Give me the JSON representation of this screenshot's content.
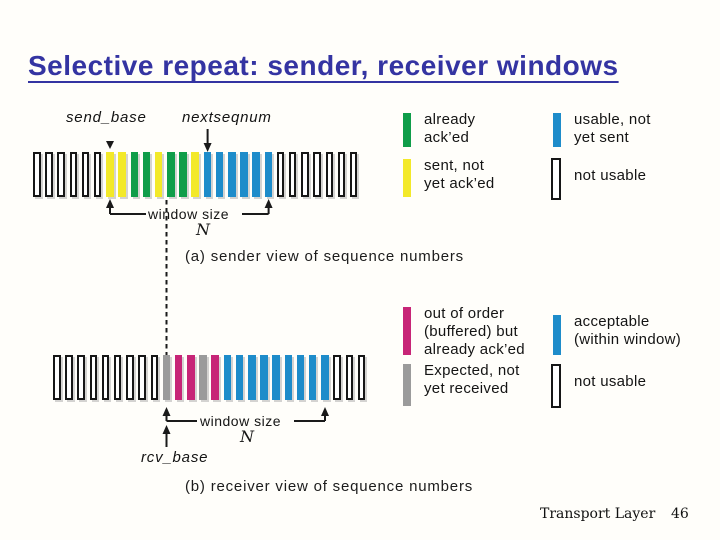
{
  "slide": {
    "title": "Selective repeat: sender, receiver windows",
    "footer": {
      "section": "Transport Layer",
      "page": "46"
    }
  },
  "colors": {
    "title": "#3434a2",
    "already_acked": "#0f9d49",
    "sent_unacked": "#f3e929",
    "usable": "#1e8cca",
    "acceptable": "#1e8cca",
    "out_of_order": "#c72577",
    "expected": "#9b9b9b",
    "bar_outline": "#161616"
  },
  "diagram": {
    "sender": {
      "send_base_label": "send_base",
      "nextseqnum_label": "nextseqnum",
      "window_size_label": "window size",
      "window_n_label": "N",
      "caption": "(a) sender view of sequence numbers",
      "bars": [
        "not_usable",
        "not_usable",
        "not_usable",
        "not_usable",
        "not_usable",
        "not_usable",
        "sent_unacked",
        "sent_unacked",
        "already_acked",
        "already_acked",
        "sent_unacked",
        "already_acked",
        "already_acked",
        "sent_unacked",
        "usable",
        "usable",
        "usable",
        "usable",
        "usable",
        "usable",
        "not_usable",
        "not_usable",
        "not_usable",
        "not_usable",
        "not_usable",
        "not_usable",
        "not_usable"
      ]
    },
    "receiver": {
      "rcv_base_label": "rcv_base",
      "window_size_label": "window size",
      "window_n_label": "N",
      "caption": "(b) receiver view of sequence numbers",
      "bars": [
        "not_usable",
        "not_usable",
        "not_usable",
        "not_usable",
        "not_usable",
        "not_usable",
        "not_usable",
        "not_usable",
        "not_usable",
        "expected",
        "out_of_order",
        "out_of_order",
        "expected",
        "out_of_order",
        "acceptable",
        "acceptable",
        "acceptable",
        "acceptable",
        "acceptable",
        "acceptable",
        "acceptable",
        "acceptable",
        "acceptable",
        "not_usable",
        "not_usable",
        "not_usable"
      ]
    },
    "legend_sender": [
      {
        "key": "already_acked",
        "lines": [
          "already",
          "ack’ed"
        ]
      },
      {
        "key": "usable",
        "lines": [
          "usable, not",
          "yet sent"
        ]
      },
      {
        "key": "sent_unacked",
        "lines": [
          "sent, not",
          "yet ack’ed"
        ]
      },
      {
        "key": "not_usable",
        "lines": [
          "not usable"
        ]
      }
    ],
    "legend_receiver": [
      {
        "key": "out_of_order",
        "lines": [
          "out of order",
          "(buffered) but",
          "already ack’ed"
        ]
      },
      {
        "key": "acceptable",
        "lines": [
          "acceptable",
          "(within window)"
        ]
      },
      {
        "key": "expected",
        "lines": [
          "Expected,  not",
          "yet received"
        ]
      },
      {
        "key": "not_usable",
        "lines": [
          "not usable"
        ]
      }
    ]
  }
}
